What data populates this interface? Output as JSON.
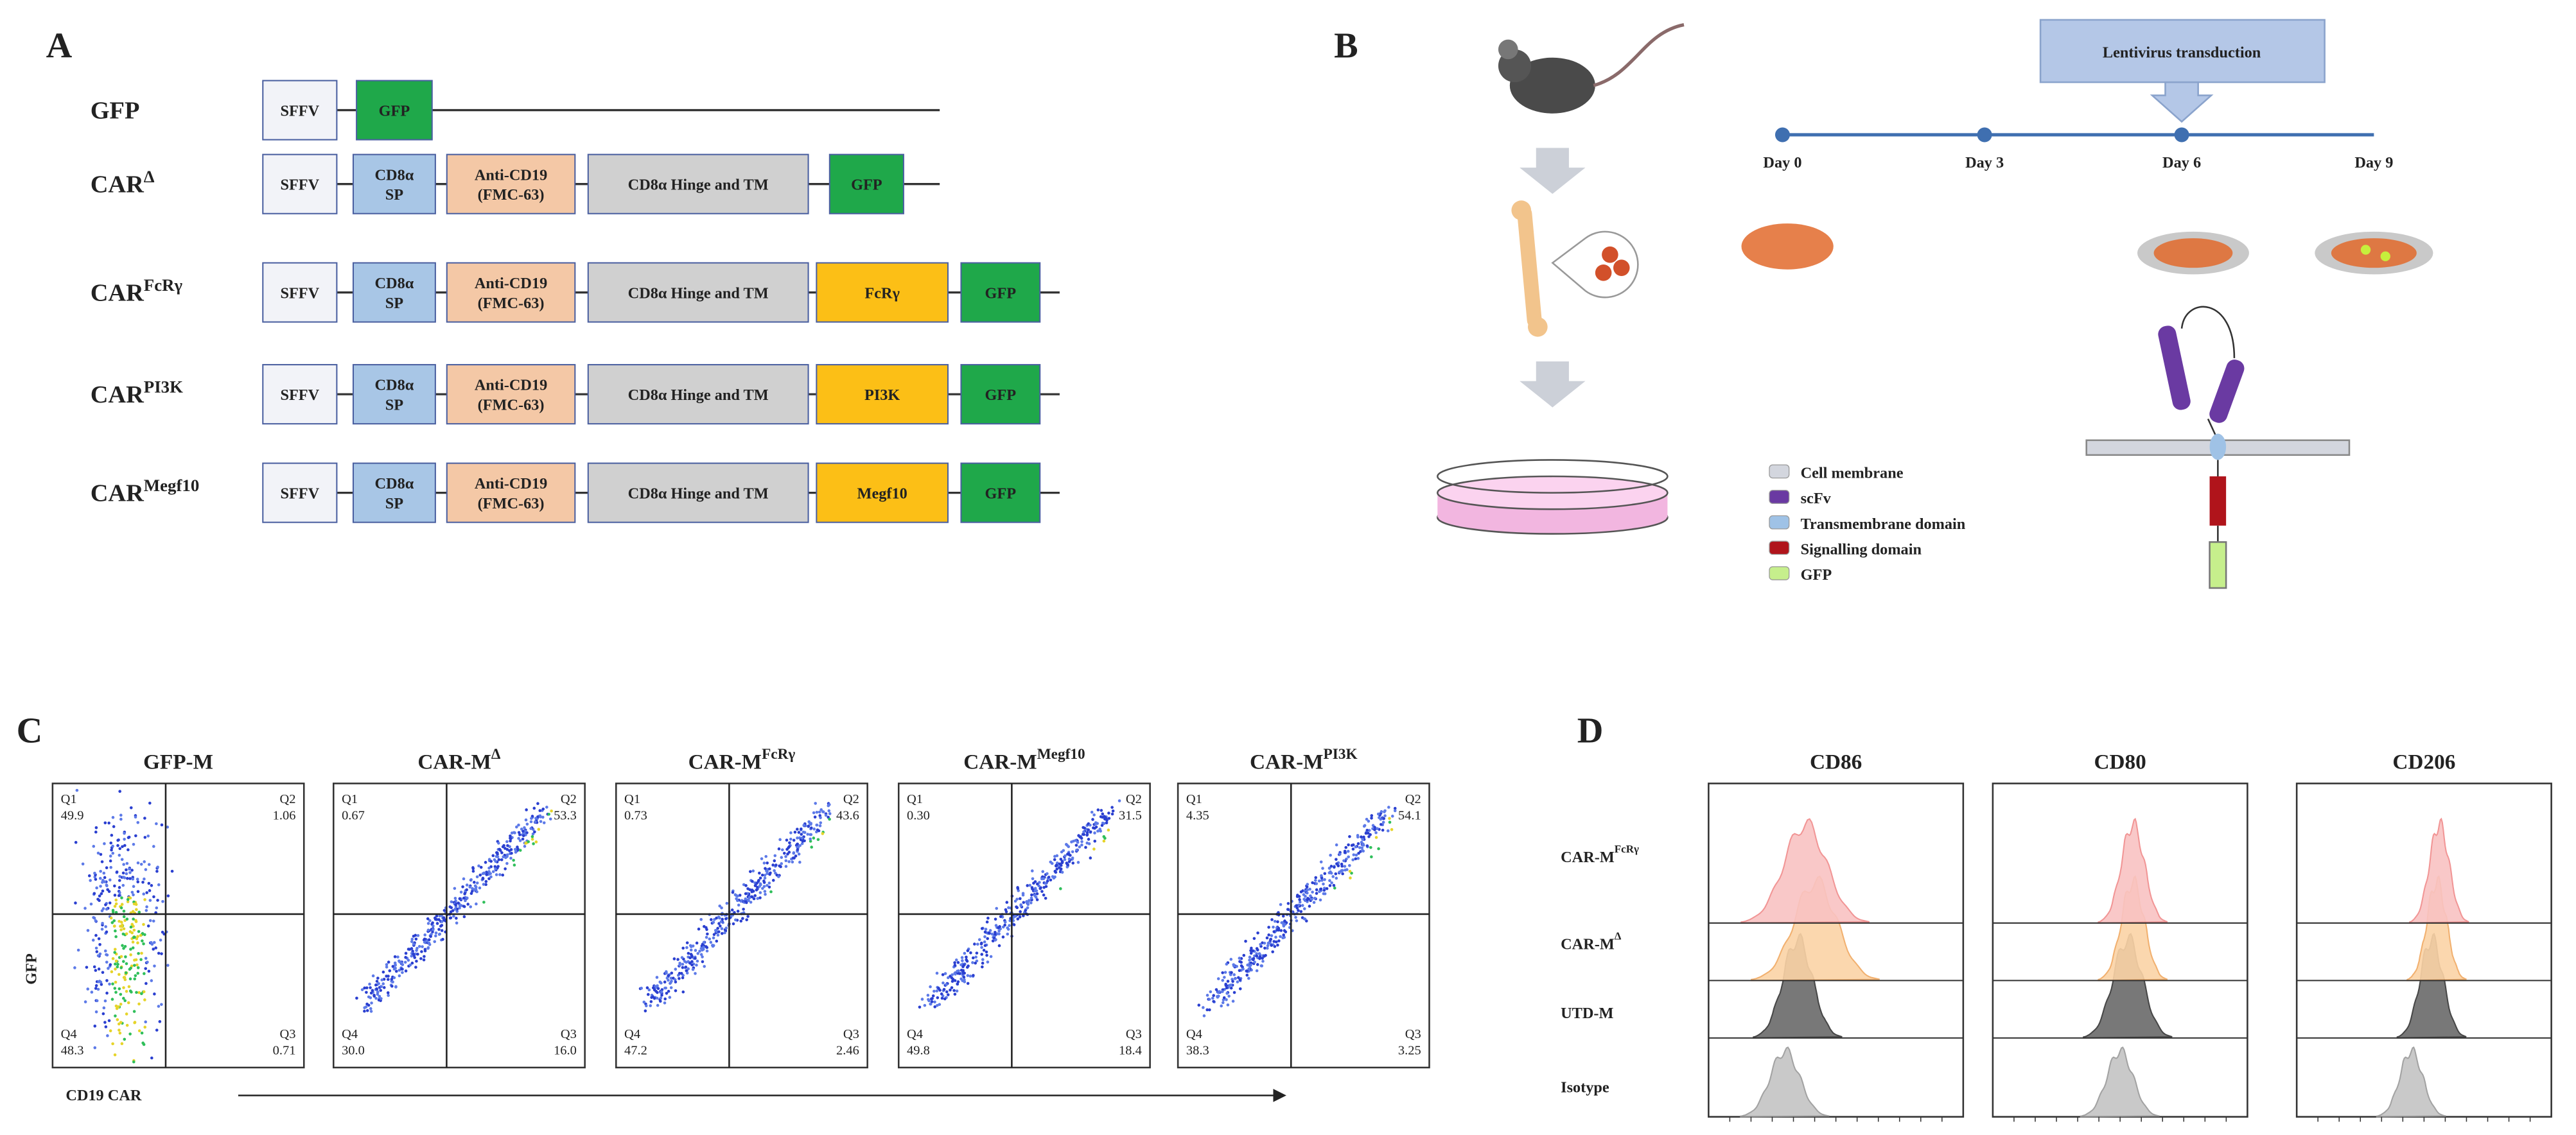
{
  "panel_a": {
    "label": "A",
    "constructs": [
      {
        "name": "GFP",
        "parts": [
          {
            "lines": [
              "SFFV"
            ],
            "color": "#f2f3f8"
          },
          {
            "lines": [
              "GFP"
            ],
            "color": "#1fa84a"
          }
        ]
      },
      {
        "name": "CAR",
        "sup": "Δ",
        "parts": [
          {
            "lines": [
              "SFFV"
            ],
            "color": "#f2f3f8"
          },
          {
            "lines": [
              "CD8α",
              "SP"
            ],
            "color": "#a8c6e6"
          },
          {
            "lines": [
              "Anti-CD19",
              "(FMC-63)"
            ],
            "color": "#f4c8a6"
          },
          {
            "lines": [
              "CD8α Hinge and TM"
            ],
            "color": "#d0d0d0"
          },
          {
            "lines": [
              "GFP"
            ],
            "color": "#1fa84a"
          }
        ]
      },
      {
        "name": "CAR",
        "sup": "FcRγ",
        "parts": [
          {
            "lines": [
              "SFFV"
            ],
            "color": "#f2f3f8"
          },
          {
            "lines": [
              "CD8α",
              "SP"
            ],
            "color": "#a8c6e6"
          },
          {
            "lines": [
              "Anti-CD19",
              "(FMC-63)"
            ],
            "color": "#f4c8a6"
          },
          {
            "lines": [
              "CD8α Hinge and TM"
            ],
            "color": "#d0d0d0"
          },
          {
            "lines": [
              "FcRγ"
            ],
            "color": "#fcbf16"
          },
          {
            "lines": [
              "GFP"
            ],
            "color": "#1fa84a"
          }
        ]
      },
      {
        "name": "CAR",
        "sup": "PI3K",
        "parts": [
          {
            "lines": [
              "SFFV"
            ],
            "color": "#f2f3f8"
          },
          {
            "lines": [
              "CD8α",
              "SP"
            ],
            "color": "#a8c6e6"
          },
          {
            "lines": [
              "Anti-CD19",
              "(FMC-63)"
            ],
            "color": "#f4c8a6"
          },
          {
            "lines": [
              "CD8α Hinge and TM"
            ],
            "color": "#d0d0d0"
          },
          {
            "lines": [
              "PI3K"
            ],
            "color": "#fcbf16"
          },
          {
            "lines": [
              "GFP"
            ],
            "color": "#1fa84a"
          }
        ]
      },
      {
        "name": "CAR",
        "sup": "Megf10",
        "parts": [
          {
            "lines": [
              "SFFV"
            ],
            "color": "#f2f3f8"
          },
          {
            "lines": [
              "CD8α",
              "SP"
            ],
            "color": "#a8c6e6"
          },
          {
            "lines": [
              "Anti-CD19",
              "(FMC-63)"
            ],
            "color": "#f4c8a6"
          },
          {
            "lines": [
              "CD8α Hinge and TM"
            ],
            "color": "#d0d0d0"
          },
          {
            "lines": [
              "Megf10"
            ],
            "color": "#fcbf16"
          },
          {
            "lines": [
              "GFP"
            ],
            "color": "#1fa84a"
          }
        ]
      }
    ]
  },
  "panel_b": {
    "label": "B",
    "step": "Lentivirus transduction",
    "days": [
      "Day 0",
      "Day 3",
      "Day 6",
      "Day 9"
    ],
    "legend": [
      {
        "text": "Cell membrane",
        "color": "#d3d6de"
      },
      {
        "text": "scFv",
        "color": "#6a3aa2"
      },
      {
        "text": "Transmembrane domain",
        "color": "#9fc2e6"
      },
      {
        "text": "Signalling domain",
        "color": "#b0141b"
      },
      {
        "text": "GFP",
        "color": "#c6ef8c"
      }
    ]
  },
  "panel_c": {
    "label": "C",
    "y_label": "GFP",
    "x_label": "CD19 CAR",
    "plots": [
      {
        "title": "GFP-M",
        "quadrants": [
          [
            "Q1",
            "49.9"
          ],
          [
            "Q2",
            "1.06"
          ],
          [
            "Q4",
            "48.3"
          ],
          [
            "Q3",
            "0.71"
          ]
        ]
      },
      {
        "title": "CAR-M",
        "sup": "Δ",
        "quadrants": [
          [
            "Q1",
            "0.67"
          ],
          [
            "Q2",
            "53.3"
          ],
          [
            "Q4",
            "30.0"
          ],
          [
            "Q3",
            "16.0"
          ]
        ]
      },
      {
        "title": "CAR-M",
        "sup": "FcRγ",
        "quadrants": [
          [
            "Q1",
            "0.73"
          ],
          [
            "Q2",
            "43.6"
          ],
          [
            "Q4",
            "47.2"
          ],
          [
            "Q3",
            "2.46"
          ]
        ]
      },
      {
        "title": "CAR-M",
        "sup": "Megf10",
        "quadrants": [
          [
            "Q1",
            "0.30"
          ],
          [
            "Q2",
            "31.5"
          ],
          [
            "Q4",
            "49.8"
          ],
          [
            "Q3",
            "18.4"
          ]
        ]
      },
      {
        "title": "CAR-M",
        "sup": "PI3K",
        "quadrants": [
          [
            "Q1",
            "4.35"
          ],
          [
            "Q2",
            "54.1"
          ],
          [
            "Q4",
            "38.3"
          ],
          [
            "Q3",
            "3.25"
          ]
        ]
      }
    ]
  },
  "panel_d": {
    "label": "D",
    "columns": [
      "CD86",
      "CD80",
      "CD206"
    ],
    "rows": [
      {
        "name": "CAR-M",
        "sup": "FcRγ"
      },
      {
        "name": "CAR-M",
        "sup": "Δ"
      },
      {
        "name": "UTD-M"
      },
      {
        "name": "Isotype"
      }
    ]
  }
}
